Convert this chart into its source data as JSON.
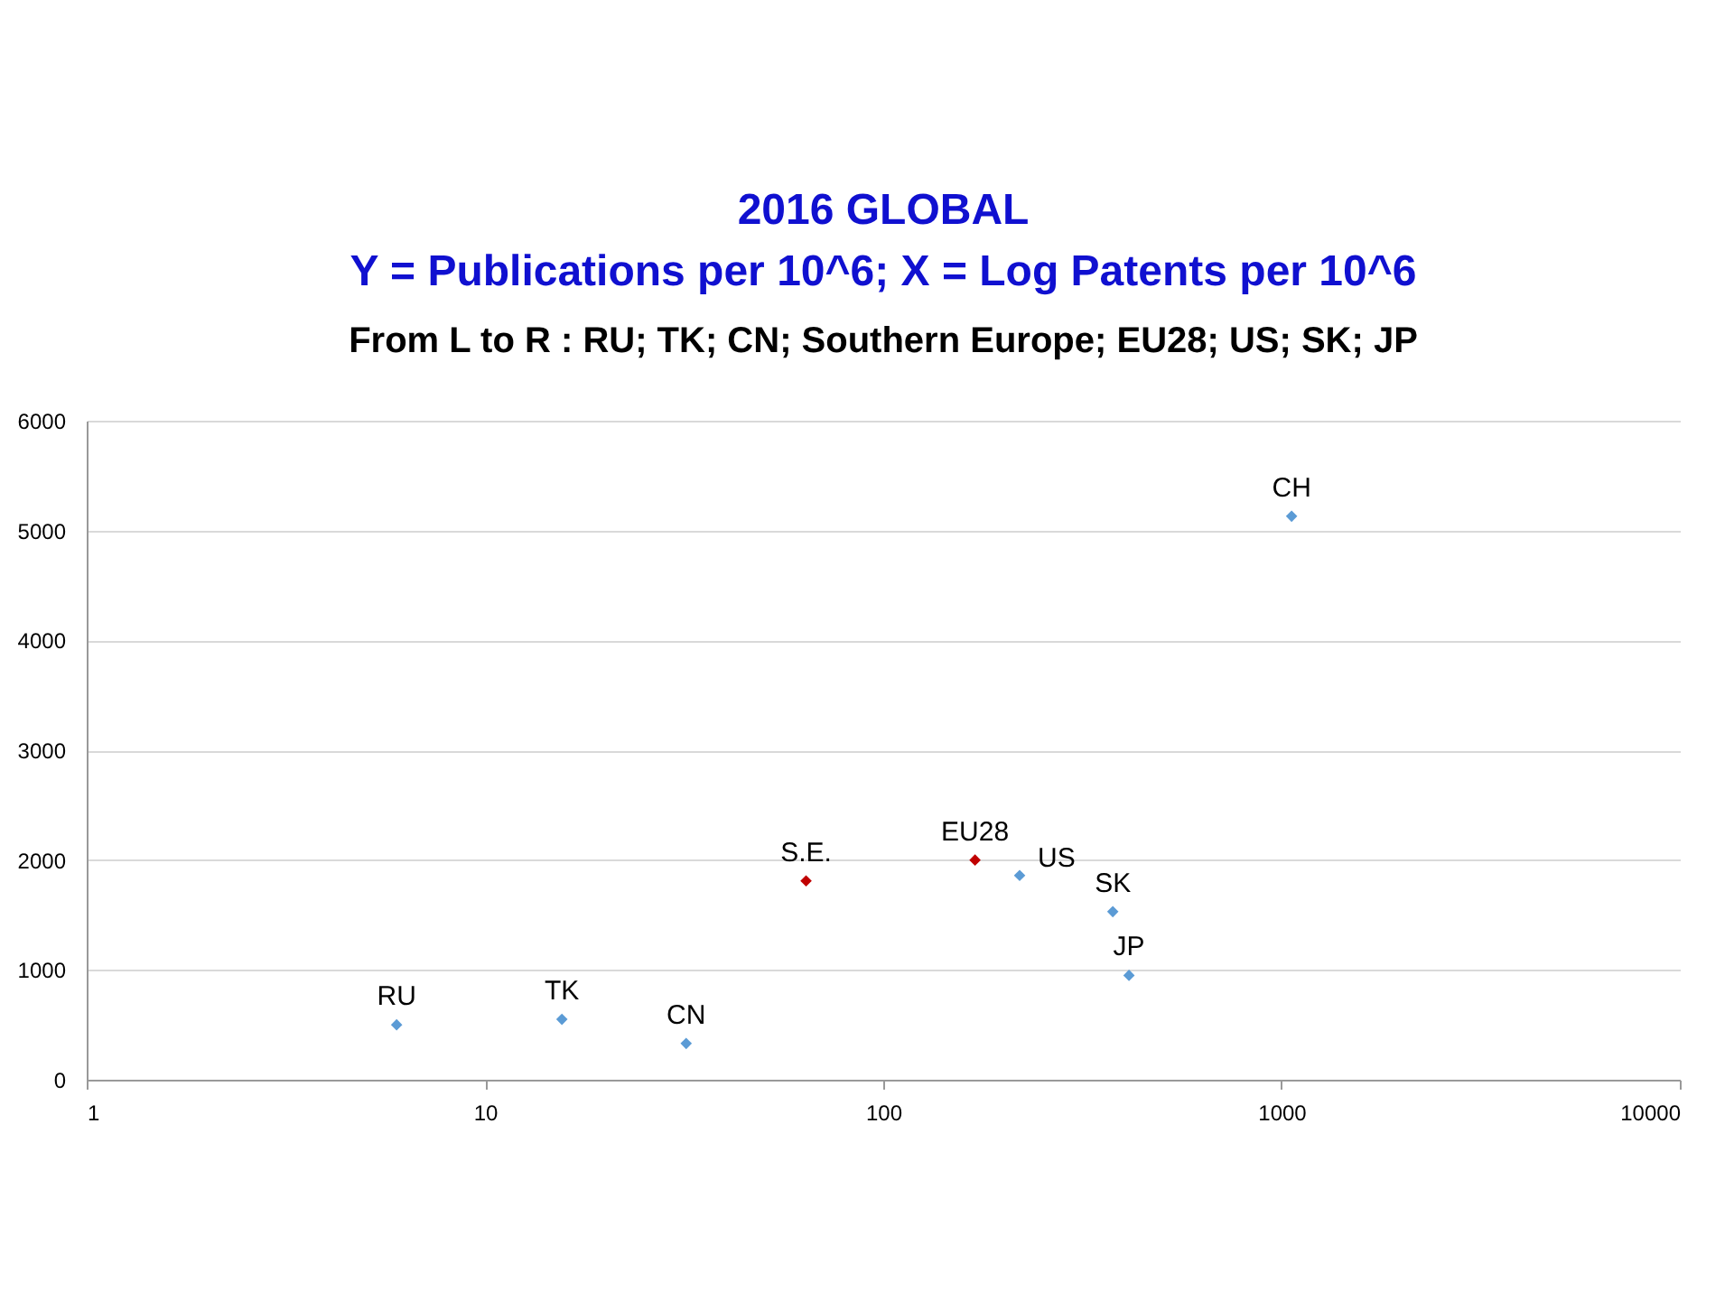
{
  "chart_data": {
    "type": "scatter",
    "title": "2016 GLOBAL",
    "subtitle": "Y = Publications per 10^6; X = Log Patents per 10^6",
    "x": [
      6,
      15.6,
      32,
      64,
      170,
      220,
      377,
      414,
      1060
    ],
    "values": [
      500,
      550,
      330,
      1810,
      2000,
      1860,
      1530,
      950,
      5130
    ],
    "colors": [
      "#5b9bd5",
      "#5b9bd5",
      "#5b9bd5",
      "#c00000",
      "#c00000",
      "#5b9bd5",
      "#5b9bd5",
      "#5b9bd5",
      "#5b9bd5"
    ],
    "log": "x",
    "xlim": [
      1,
      10000
    ],
    "xticks": [
      1,
      10,
      100,
      1000,
      10000
    ],
    "ylim": [
      0,
      6000
    ],
    "yticks": [
      0,
      1000,
      2000,
      3000,
      4000,
      5000,
      6000
    ],
    "grid": "y",
    "marker": "diamond",
    "annotations": [
      "From L to R : RU; TK; CN; Southern Europe; EU28; US; SK; JP",
      {
        "text": "RU",
        "x": 6,
        "y": 500
      },
      {
        "text": "TK",
        "x": 15.6,
        "y": 550
      },
      {
        "text": "CN",
        "x": 32,
        "y": 330
      },
      {
        "text": "S.E.",
        "x": 64,
        "y": 1810
      },
      {
        "text": "EU28",
        "x": 170,
        "y": 2000
      },
      {
        "text": "US",
        "x": 220,
        "y": 1860
      },
      {
        "text": "SK",
        "x": 377,
        "y": 1530
      },
      {
        "text": "JP",
        "x": 414,
        "y": 950
      },
      {
        "text": "CH",
        "x": 1060,
        "y": 5130
      }
    ]
  }
}
